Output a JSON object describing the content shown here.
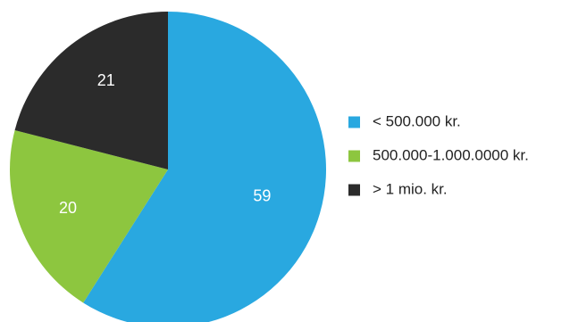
{
  "chart_data": {
    "type": "pie",
    "start_angle_deg": 0,
    "direction": "clockwise",
    "slices": [
      {
        "label": "< 500.000 kr.",
        "value": 59,
        "color": "#29A8E0"
      },
      {
        "label": "500.000-1.000.0000 kr.",
        "value": 20,
        "color": "#8DC63F"
      },
      {
        "label": "> 1 mio. kr.",
        "value": 21,
        "color": "#2B2B2B"
      }
    ],
    "legend": {
      "position": "right",
      "entries": [
        "< 500.000 kr.",
        "500.000-1.000.0000 kr.",
        "> 1 mio. kr."
      ]
    },
    "data_labels": [
      "59",
      "20",
      "21"
    ]
  }
}
